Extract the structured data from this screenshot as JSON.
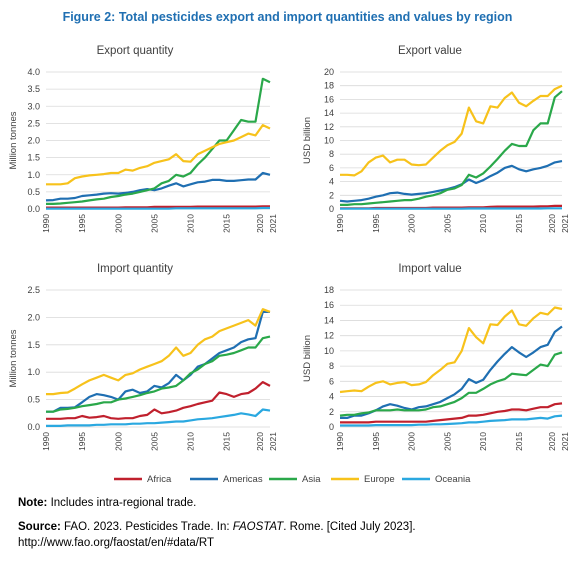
{
  "figure": {
    "title": "Figure 2: Total pesticides export and import quantities and values by region",
    "note_label": "Note:",
    "note_text": "Includes intra-regional trade.",
    "source_label": "Source:",
    "source_text_1": "FAO. 2023. Pesticides Trade. In:",
    "source_italic": "FAOSTAT",
    "source_text_2": ". Rome. [Cited July 2023].",
    "source_url": "http://www.fao.org/faostat/en/#data/RT"
  },
  "colors": {
    "Africa": "#c0202d",
    "Americas": "#1f6fb2",
    "Asia": "#2aa84a",
    "Europe": "#f7c21b",
    "Oceania": "#2aa8e0"
  },
  "chart_data": [
    {
      "type": "line",
      "title": "Export quantity",
      "ylabel": "Million tonnes",
      "ylim": [
        0,
        4.0
      ],
      "yticks": [
        "0.0",
        "0.5",
        "1.0",
        "1.5",
        "2.0",
        "2.5",
        "3.0",
        "3.5",
        "4.0"
      ],
      "ytick_values": [
        0,
        0.5,
        1.0,
        1.5,
        2.0,
        2.5,
        3.0,
        3.5,
        4.0
      ],
      "xticks": [
        "1990",
        "1995",
        "2000",
        "2005",
        "2010",
        "2015",
        "2020",
        "2021"
      ],
      "x": [
        1990,
        1991,
        1992,
        1993,
        1994,
        1995,
        1996,
        1997,
        1998,
        1999,
        2000,
        2001,
        2002,
        2003,
        2004,
        2005,
        2006,
        2007,
        2008,
        2009,
        2010,
        2011,
        2012,
        2013,
        2014,
        2015,
        2016,
        2017,
        2018,
        2019,
        2020,
        2021
      ],
      "series": [
        {
          "name": "Africa",
          "values": [
            0.04,
            0.04,
            0.04,
            0.04,
            0.04,
            0.04,
            0.04,
            0.04,
            0.04,
            0.04,
            0.04,
            0.05,
            0.05,
            0.05,
            0.05,
            0.06,
            0.06,
            0.06,
            0.06,
            0.06,
            0.06,
            0.07,
            0.07,
            0.07,
            0.07,
            0.07,
            0.07,
            0.07,
            0.07,
            0.07,
            0.08,
            0.08
          ]
        },
        {
          "name": "Americas",
          "values": [
            0.25,
            0.26,
            0.3,
            0.3,
            0.32,
            0.38,
            0.4,
            0.42,
            0.45,
            0.46,
            0.45,
            0.47,
            0.5,
            0.55,
            0.58,
            0.55,
            0.6,
            0.68,
            0.75,
            0.66,
            0.72,
            0.78,
            0.8,
            0.85,
            0.85,
            0.82,
            0.82,
            0.84,
            0.86,
            0.86,
            1.05,
            1.0
          ]
        },
        {
          "name": "Asia",
          "values": [
            0.15,
            0.15,
            0.16,
            0.18,
            0.2,
            0.22,
            0.25,
            0.28,
            0.3,
            0.35,
            0.38,
            0.42,
            0.45,
            0.5,
            0.55,
            0.6,
            0.75,
            0.82,
            1.0,
            0.95,
            1.05,
            1.3,
            1.5,
            1.75,
            2.0,
            2.0,
            2.3,
            2.6,
            2.55,
            2.55,
            3.8,
            3.7
          ]
        },
        {
          "name": "Europe",
          "values": [
            0.72,
            0.72,
            0.72,
            0.75,
            0.9,
            0.95,
            0.98,
            1.0,
            1.02,
            1.05,
            1.05,
            1.15,
            1.12,
            1.2,
            1.25,
            1.35,
            1.4,
            1.45,
            1.6,
            1.4,
            1.38,
            1.6,
            1.7,
            1.8,
            1.9,
            1.95,
            2.0,
            2.1,
            2.2,
            2.15,
            2.45,
            2.35
          ]
        },
        {
          "name": "Oceania",
          "values": [
            0.01,
            0.01,
            0.01,
            0.01,
            0.01,
            0.01,
            0.01,
            0.01,
            0.01,
            0.01,
            0.01,
            0.01,
            0.01,
            0.01,
            0.01,
            0.01,
            0.01,
            0.01,
            0.02,
            0.02,
            0.02,
            0.02,
            0.02,
            0.02,
            0.02,
            0.02,
            0.02,
            0.02,
            0.02,
            0.02,
            0.03,
            0.03
          ]
        }
      ]
    },
    {
      "type": "line",
      "title": "Export value",
      "ylabel": "USD billion",
      "ylim": [
        0,
        20
      ],
      "yticks": [
        "0",
        "2",
        "4",
        "6",
        "8",
        "10",
        "12",
        "14",
        "16",
        "18",
        "20"
      ],
      "ytick_values": [
        0,
        2,
        4,
        6,
        8,
        10,
        12,
        14,
        16,
        18,
        20
      ],
      "xticks": [
        "1990",
        "1995",
        "2000",
        "2005",
        "2010",
        "2015",
        "2020",
        "2021"
      ],
      "x": [
        1990,
        1991,
        1992,
        1993,
        1994,
        1995,
        1996,
        1997,
        1998,
        1999,
        2000,
        2001,
        2002,
        2003,
        2004,
        2005,
        2006,
        2007,
        2008,
        2009,
        2010,
        2011,
        2012,
        2013,
        2014,
        2015,
        2016,
        2017,
        2018,
        2019,
        2020,
        2021
      ],
      "series": [
        {
          "name": "Africa",
          "values": [
            0.1,
            0.1,
            0.1,
            0.1,
            0.1,
            0.15,
            0.15,
            0.15,
            0.15,
            0.15,
            0.15,
            0.15,
            0.15,
            0.2,
            0.2,
            0.2,
            0.2,
            0.2,
            0.25,
            0.25,
            0.25,
            0.3,
            0.35,
            0.35,
            0.35,
            0.35,
            0.35,
            0.35,
            0.4,
            0.4,
            0.45,
            0.45
          ]
        },
        {
          "name": "Americas",
          "values": [
            1.2,
            1.1,
            1.2,
            1.3,
            1.5,
            1.8,
            2.0,
            2.3,
            2.4,
            2.2,
            2.1,
            2.2,
            2.3,
            2.5,
            2.7,
            2.9,
            3.2,
            3.6,
            4.3,
            3.8,
            4.2,
            4.8,
            5.3,
            6.0,
            6.3,
            5.8,
            5.5,
            5.8,
            6.0,
            6.3,
            6.8,
            7.0
          ]
        },
        {
          "name": "Asia",
          "values": [
            0.6,
            0.6,
            0.7,
            0.7,
            0.8,
            0.9,
            1.0,
            1.1,
            1.2,
            1.3,
            1.3,
            1.5,
            1.8,
            2.0,
            2.3,
            2.8,
            3.0,
            3.5,
            5.0,
            4.6,
            5.2,
            6.2,
            7.3,
            8.5,
            9.5,
            9.2,
            9.2,
            11.5,
            12.5,
            12.5,
            16.3,
            17.2
          ]
        },
        {
          "name": "Europe",
          "values": [
            5.0,
            5.0,
            4.9,
            5.5,
            6.8,
            7.5,
            7.8,
            6.8,
            7.2,
            7.2,
            6.5,
            6.4,
            6.5,
            7.5,
            8.5,
            9.3,
            9.8,
            11.0,
            14.8,
            12.8,
            12.5,
            15.0,
            14.8,
            16.2,
            17.0,
            15.5,
            15.0,
            15.8,
            16.5,
            16.5,
            17.5,
            18.0
          ]
        },
        {
          "name": "Oceania",
          "values": [
            0.05,
            0.05,
            0.05,
            0.05,
            0.05,
            0.05,
            0.05,
            0.05,
            0.05,
            0.05,
            0.05,
            0.05,
            0.05,
            0.05,
            0.05,
            0.05,
            0.05,
            0.05,
            0.08,
            0.08,
            0.08,
            0.08,
            0.08,
            0.08,
            0.08,
            0.08,
            0.08,
            0.08,
            0.08,
            0.1,
            0.1,
            0.1
          ]
        }
      ]
    },
    {
      "type": "line",
      "title": "Import quantity",
      "ylabel": "Million tonnes",
      "ylim": [
        0,
        2.5
      ],
      "yticks": [
        "0.0",
        "0.5",
        "1.0",
        "1.5",
        "2.0",
        "2.5"
      ],
      "ytick_values": [
        0,
        0.5,
        1.0,
        1.5,
        2.0,
        2.5
      ],
      "xticks": [
        "1990",
        "1995",
        "2000",
        "2005",
        "2010",
        "2015",
        "2020",
        "2021"
      ],
      "x": [
        1990,
        1991,
        1992,
        1993,
        1994,
        1995,
        1996,
        1997,
        1998,
        1999,
        2000,
        2001,
        2002,
        2003,
        2004,
        2005,
        2006,
        2007,
        2008,
        2009,
        2010,
        2011,
        2012,
        2013,
        2014,
        2015,
        2016,
        2017,
        2018,
        2019,
        2020,
        2021
      ],
      "series": [
        {
          "name": "Africa",
          "values": [
            0.15,
            0.15,
            0.15,
            0.16,
            0.16,
            0.2,
            0.17,
            0.18,
            0.2,
            0.16,
            0.15,
            0.16,
            0.16,
            0.2,
            0.22,
            0.32,
            0.25,
            0.27,
            0.3,
            0.35,
            0.38,
            0.42,
            0.45,
            0.48,
            0.63,
            0.6,
            0.55,
            0.6,
            0.62,
            0.7,
            0.82,
            0.75
          ]
        },
        {
          "name": "Americas",
          "values": [
            0.28,
            0.28,
            0.35,
            0.35,
            0.36,
            0.45,
            0.55,
            0.6,
            0.58,
            0.55,
            0.5,
            0.65,
            0.68,
            0.62,
            0.65,
            0.75,
            0.72,
            0.8,
            0.95,
            0.85,
            0.95,
            1.1,
            1.15,
            1.25,
            1.35,
            1.4,
            1.45,
            1.55,
            1.6,
            1.62,
            2.1,
            2.1
          ]
        },
        {
          "name": "Asia",
          "values": [
            0.28,
            0.28,
            0.32,
            0.33,
            0.35,
            0.38,
            0.4,
            0.42,
            0.45,
            0.45,
            0.5,
            0.52,
            0.55,
            0.58,
            0.62,
            0.65,
            0.7,
            0.72,
            0.75,
            0.85,
            0.98,
            1.05,
            1.15,
            1.2,
            1.3,
            1.32,
            1.35,
            1.4,
            1.45,
            1.45,
            1.62,
            1.65
          ]
        },
        {
          "name": "Europe",
          "values": [
            0.6,
            0.6,
            0.62,
            0.63,
            0.7,
            0.78,
            0.85,
            0.9,
            0.95,
            0.9,
            0.85,
            0.95,
            0.98,
            1.05,
            1.1,
            1.15,
            1.2,
            1.3,
            1.45,
            1.3,
            1.35,
            1.5,
            1.6,
            1.65,
            1.75,
            1.8,
            1.85,
            1.9,
            1.95,
            1.85,
            2.15,
            2.1
          ]
        },
        {
          "name": "Oceania",
          "values": [
            0.02,
            0.02,
            0.02,
            0.03,
            0.03,
            0.03,
            0.03,
            0.04,
            0.04,
            0.05,
            0.05,
            0.05,
            0.06,
            0.06,
            0.07,
            0.07,
            0.08,
            0.09,
            0.1,
            0.1,
            0.12,
            0.14,
            0.15,
            0.16,
            0.18,
            0.2,
            0.22,
            0.25,
            0.23,
            0.2,
            0.32,
            0.3
          ]
        }
      ]
    },
    {
      "type": "line",
      "title": "Import value",
      "ylabel": "USD billion",
      "ylim": [
        0,
        18
      ],
      "yticks": [
        "0",
        "2",
        "4",
        "6",
        "8",
        "10",
        "12",
        "14",
        "16",
        "18"
      ],
      "ytick_values": [
        0,
        2,
        4,
        6,
        8,
        10,
        12,
        14,
        16,
        18
      ],
      "xticks": [
        "1990",
        "1995",
        "2000",
        "2005",
        "2010",
        "2015",
        "2020",
        "2021"
      ],
      "x": [
        1990,
        1991,
        1992,
        1993,
        1994,
        1995,
        1996,
        1997,
        1998,
        1999,
        2000,
        2001,
        2002,
        2003,
        2004,
        2005,
        2006,
        2007,
        2008,
        2009,
        2010,
        2011,
        2012,
        2013,
        2014,
        2015,
        2016,
        2017,
        2018,
        2019,
        2020,
        2021
      ],
      "series": [
        {
          "name": "Africa",
          "values": [
            0.6,
            0.6,
            0.6,
            0.6,
            0.6,
            0.7,
            0.7,
            0.7,
            0.7,
            0.7,
            0.7,
            0.7,
            0.7,
            0.8,
            0.9,
            1.0,
            1.1,
            1.2,
            1.5,
            1.5,
            1.6,
            1.8,
            2.0,
            2.1,
            2.3,
            2.3,
            2.2,
            2.4,
            2.6,
            2.6,
            3.0,
            3.1
          ]
        },
        {
          "name": "Americas",
          "values": [
            1.2,
            1.2,
            1.5,
            1.5,
            1.8,
            2.2,
            2.7,
            3.0,
            2.8,
            2.5,
            2.3,
            2.6,
            2.7,
            3.0,
            3.3,
            3.8,
            4.3,
            5.0,
            6.3,
            5.8,
            6.2,
            7.5,
            8.6,
            9.6,
            10.5,
            9.8,
            9.2,
            9.8,
            10.5,
            10.8,
            12.5,
            13.2
          ]
        },
        {
          "name": "Asia",
          "values": [
            1.5,
            1.6,
            1.6,
            1.8,
            1.9,
            2.2,
            2.2,
            2.2,
            2.3,
            2.2,
            2.2,
            2.2,
            2.3,
            2.6,
            2.7,
            3.0,
            3.3,
            3.8,
            4.5,
            4.5,
            5.0,
            5.6,
            6.0,
            6.3,
            7.0,
            6.9,
            6.8,
            7.5,
            8.2,
            8.0,
            9.5,
            9.8
          ]
        },
        {
          "name": "Europe",
          "values": [
            4.6,
            4.7,
            4.8,
            4.7,
            5.3,
            5.8,
            6.0,
            5.6,
            5.8,
            5.9,
            5.5,
            5.6,
            5.9,
            6.8,
            7.5,
            8.3,
            8.5,
            10.0,
            13.0,
            11.8,
            11.0,
            13.5,
            13.4,
            14.5,
            15.3,
            13.5,
            13.3,
            14.3,
            15.0,
            14.8,
            15.7,
            15.5
          ]
        },
        {
          "name": "Oceania",
          "values": [
            0.2,
            0.2,
            0.2,
            0.2,
            0.2,
            0.25,
            0.25,
            0.25,
            0.25,
            0.25,
            0.25,
            0.3,
            0.3,
            0.35,
            0.35,
            0.4,
            0.45,
            0.5,
            0.6,
            0.6,
            0.7,
            0.8,
            0.85,
            0.9,
            1.0,
            1.0,
            1.0,
            1.1,
            1.2,
            1.1,
            1.4,
            1.5
          ]
        }
      ]
    }
  ],
  "legend": [
    "Africa",
    "Americas",
    "Asia",
    "Europe",
    "Oceania"
  ]
}
